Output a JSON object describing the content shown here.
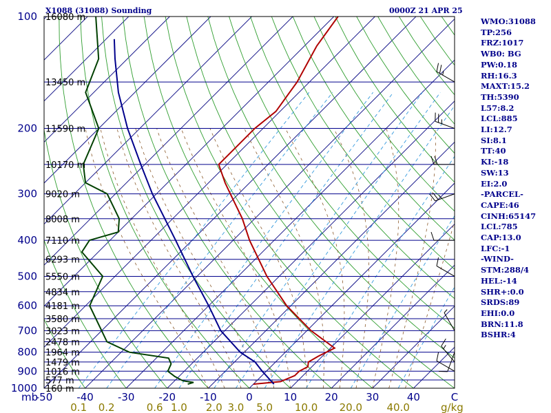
{
  "header": {
    "station": "X1088 (31088) Sounding",
    "valid_time": "0000Z 21 APR 25"
  },
  "stats": [
    "WMO:31088",
    "TP:256",
    "FRZ:1017",
    "WB0: BG",
    "PW:0.18",
    "RH:16.3",
    "MAXT:15.2",
    "TH:5390",
    "L57:8.2",
    "LCL:885",
    "LI:12.7",
    "SI:8.1",
    "TT:40",
    "KI:-18",
    "SW:13",
    "EI:2.0",
    "-PARCEL-",
    "CAPE:46",
    "CINH:65147",
    "LCL:785",
    "CAP:13.0",
    "LFC:-1",
    "-WIND-",
    "STM:288/4",
    "HEL:-14",
    "SHR+:0.0",
    "SRDS:89",
    "EHI:0.0",
    "BRN:11.8",
    "BSHR:4"
  ],
  "chart_data": {
    "type": "skew-t",
    "pressure_unit": "mb",
    "mixing_ratio_unit": "g/kg",
    "pressure_ticks": [
      100,
      200,
      300,
      400,
      500,
      600,
      700,
      800,
      900,
      1000
    ],
    "pressure_range": [
      1000,
      100
    ],
    "temperature_ticks": [
      -50,
      -40,
      -30,
      -20,
      -10,
      0,
      10,
      20,
      30,
      40,
      "C"
    ],
    "temperature_range_at_1000mb": [
      -50,
      50
    ],
    "mixing_ratio_labels": [
      "0.1",
      "0.2",
      "0.6",
      "1.0",
      "2.0",
      "3.0",
      "5.0",
      "10.0",
      "20.0",
      "40.0"
    ],
    "height_labels": [
      {
        "p": 100,
        "text": "16080 m"
      },
      {
        "p": 150,
        "text": "13450 m"
      },
      {
        "p": 200,
        "text": "11590 m"
      },
      {
        "p": 250,
        "text": "10170 m"
      },
      {
        "p": 300,
        "text": "9020 m"
      },
      {
        "p": 350,
        "text": "8008 m"
      },
      {
        "p": 400,
        "text": "7110 m"
      },
      {
        "p": 450,
        "text": "6293 m"
      },
      {
        "p": 500,
        "text": "5550 m"
      },
      {
        "p": 550,
        "text": "4834 m"
      },
      {
        "p": 600,
        "text": "4181 m"
      },
      {
        "p": 650,
        "text": "3580 m"
      },
      {
        "p": 700,
        "text": "3023 m"
      },
      {
        "p": 750,
        "text": "2478 m"
      },
      {
        "p": 800,
        "text": "1964 m"
      },
      {
        "p": 850,
        "text": "1479 m"
      },
      {
        "p": 900,
        "text": "1016 m"
      },
      {
        "p": 950,
        "text": "577 m"
      },
      {
        "p": 1000,
        "text": "160 m"
      }
    ],
    "series": [
      {
        "kind": "temperature",
        "color": "#b00000",
        "points": [
          [
            975,
            0
          ],
          [
            960,
            6
          ],
          [
            925,
            8
          ],
          [
            900,
            8
          ],
          [
            875,
            9
          ],
          [
            850,
            8
          ],
          [
            820,
            9
          ],
          [
            780,
            11
          ],
          [
            700,
            1
          ],
          [
            600,
            -11
          ],
          [
            500,
            -23
          ],
          [
            400,
            -36
          ],
          [
            350,
            -43
          ],
          [
            300,
            -52
          ],
          [
            280,
            -56
          ],
          [
            250,
            -62
          ],
          [
            220,
            -62
          ],
          [
            200,
            -62
          ],
          [
            180,
            -61
          ],
          [
            150,
            -63
          ],
          [
            120,
            -67
          ],
          [
            100,
            -69
          ]
        ]
      },
      {
        "kind": "dewpoint",
        "color": "#004000",
        "points": [
          [
            975,
            -16
          ],
          [
            965,
            -15
          ],
          [
            955,
            -18
          ],
          [
            930,
            -21
          ],
          [
            900,
            -24
          ],
          [
            860,
            -25
          ],
          [
            830,
            -27
          ],
          [
            800,
            -38
          ],
          [
            750,
            -46
          ],
          [
            700,
            -50
          ],
          [
            600,
            -59
          ],
          [
            500,
            -63
          ],
          [
            430,
            -74
          ],
          [
            400,
            -75
          ],
          [
            380,
            -70
          ],
          [
            350,
            -73
          ],
          [
            300,
            -82
          ],
          [
            280,
            -90
          ],
          [
            250,
            -95
          ],
          [
            200,
            -100
          ],
          [
            160,
            -112
          ],
          [
            130,
            -117
          ],
          [
            100,
            -128
          ]
        ]
      },
      {
        "kind": "parcel",
        "color": "#00008b",
        "points": [
          [
            975,
            5
          ],
          [
            900,
            -1
          ],
          [
            850,
            -5
          ],
          [
            800,
            -11
          ],
          [
            700,
            -21
          ],
          [
            600,
            -30
          ],
          [
            500,
            -41
          ],
          [
            400,
            -54
          ],
          [
            300,
            -71
          ],
          [
            250,
            -81
          ],
          [
            200,
            -93
          ],
          [
            160,
            -104
          ],
          [
            130,
            -113
          ],
          [
            115,
            -118
          ]
        ]
      }
    ],
    "wind_barbs": [
      {
        "p": 150,
        "dir": 300,
        "kt": 25
      },
      {
        "p": 200,
        "dir": 290,
        "kt": 25
      },
      {
        "p": 250,
        "dir": 270,
        "kt": 20
      },
      {
        "p": 300,
        "dir": 250,
        "kt": 25
      },
      {
        "p": 400,
        "dir": 270,
        "kt": 10
      },
      {
        "p": 500,
        "dir": 300,
        "kt": 10
      },
      {
        "p": 700,
        "dir": 330,
        "kt": 5
      },
      {
        "p": 800,
        "dir": 200,
        "kt": 10
      },
      {
        "p": 850,
        "dir": 320,
        "kt": 15
      },
      {
        "p": 900,
        "dir": 300,
        "kt": 10
      }
    ]
  }
}
